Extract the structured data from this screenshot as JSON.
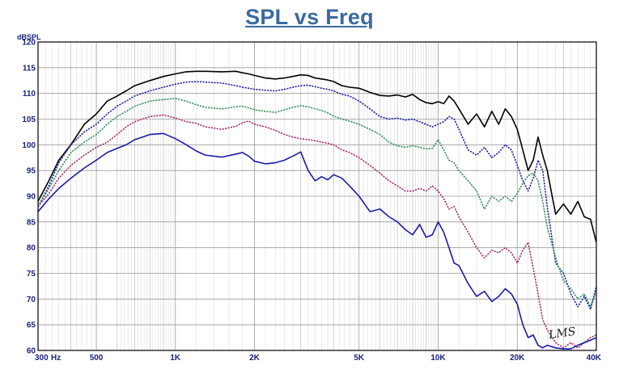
{
  "chart_data": {
    "type": "line",
    "title": "SPL vs Freq",
    "ylabel": "dBSPL",
    "xlabel": "",
    "x_unit_label": "Hz",
    "x_scale": "log",
    "xlim": [
      300,
      40000
    ],
    "ylim": [
      60,
      120
    ],
    "grid": true,
    "legend": "none",
    "x_ticks": [
      {
        "value": 300,
        "label": "300"
      },
      {
        "value": 500,
        "label": "500"
      },
      {
        "value": 1000,
        "label": "1K"
      },
      {
        "value": 2000,
        "label": "2K"
      },
      {
        "value": 5000,
        "label": "5K"
      },
      {
        "value": 10000,
        "label": "10K"
      },
      {
        "value": 20000,
        "label": "20K"
      },
      {
        "value": 40000,
        "label": "40K"
      }
    ],
    "y_ticks": [
      60,
      65,
      70,
      75,
      80,
      85,
      90,
      95,
      100,
      105,
      110,
      115,
      120
    ],
    "watermark": "LMS",
    "series": [
      {
        "color": "#000000",
        "style": "solid",
        "x": [
          300,
          330,
          360,
          400,
          450,
          500,
          550,
          600,
          650,
          700,
          800,
          900,
          1000,
          1100,
          1200,
          1300,
          1500,
          1700,
          1800,
          1900,
          2000,
          2200,
          2400,
          2600,
          2800,
          3000,
          3200,
          3400,
          3600,
          3800,
          4000,
          4300,
          4600,
          5000,
          5500,
          6000,
          6500,
          7000,
          7500,
          8000,
          8500,
          9000,
          9500,
          10000,
          10500,
          11000,
          11500,
          12000,
          13000,
          14000,
          15000,
          16000,
          17000,
          18000,
          19000,
          20000,
          21000,
          22000,
          23000,
          24000,
          25000,
          26000,
          28000,
          30000,
          32000,
          34000,
          36000,
          38000,
          40000
        ],
        "y": [
          89,
          93,
          97,
          100,
          104,
          106,
          108.5,
          109.5,
          110.5,
          111.5,
          112.5,
          113.3,
          113.8,
          114.2,
          114.3,
          114.3,
          114.2,
          114.3,
          114.0,
          113.8,
          113.5,
          113.0,
          112.8,
          113.0,
          113.3,
          113.6,
          113.5,
          113.0,
          112.8,
          112.6,
          112.3,
          111.5,
          111.2,
          111.0,
          110.2,
          109.6,
          109.5,
          109.7,
          109.3,
          109.8,
          108.8,
          108.2,
          108.0,
          108.4,
          108.0,
          109.5,
          108.5,
          107.0,
          104.0,
          106.0,
          103.5,
          106.5,
          104.0,
          107.0,
          105.5,
          103.0,
          99.0,
          95.0,
          97.0,
          101.5,
          98.0,
          95.0,
          86.5,
          88.5,
          86.5,
          89.0,
          86.0,
          85.5,
          81.0
        ]
      },
      {
        "color": "#1a1aa8",
        "style": "dashed",
        "x": [
          300,
          330,
          360,
          400,
          450,
          500,
          550,
          600,
          650,
          700,
          800,
          900,
          1000,
          1100,
          1200,
          1300,
          1500,
          1700,
          1800,
          1900,
          2000,
          2200,
          2400,
          2600,
          2800,
          3000,
          3200,
          3400,
          3600,
          3800,
          4000,
          4300,
          4600,
          5000,
          5500,
          6000,
          6500,
          7000,
          7500,
          8000,
          8500,
          9000,
          9500,
          10000,
          10500,
          11000,
          11500,
          12000,
          13000,
          14000,
          15000,
          16000,
          17000,
          18000,
          19000,
          20000,
          21000,
          22000,
          23000,
          24000,
          25000,
          26000,
          28000,
          30000,
          32000,
          34000,
          36000,
          38000,
          40000
        ],
        "y": [
          88,
          92,
          96.5,
          100,
          102.5,
          104,
          106,
          107.5,
          108.5,
          109.5,
          110.5,
          111.2,
          111.8,
          112.2,
          112.3,
          112.2,
          112.0,
          111.5,
          111.2,
          111.0,
          110.8,
          110.6,
          110.5,
          110.8,
          111.2,
          111.5,
          111.6,
          111.3,
          111.0,
          110.8,
          110.5,
          109.8,
          109.5,
          108.5,
          107.0,
          105.5,
          105.0,
          105.2,
          104.8,
          105.0,
          104.5,
          104.0,
          103.5,
          104.0,
          104.5,
          105.5,
          105.0,
          103.0,
          99.0,
          98.0,
          99.5,
          97.5,
          98.5,
          100.0,
          99.0,
          96.0,
          93.0,
          91.0,
          93.5,
          97.0,
          95.0,
          88.0,
          77.0,
          75.0,
          71.0,
          68.5,
          70.5,
          68.0,
          72.5
        ]
      },
      {
        "color": "#2e8b57",
        "style": "dashed",
        "x": [
          300,
          330,
          360,
          400,
          450,
          500,
          550,
          600,
          650,
          700,
          800,
          900,
          1000,
          1100,
          1200,
          1300,
          1500,
          1700,
          1800,
          1900,
          2000,
          2200,
          2400,
          2600,
          2800,
          3000,
          3200,
          3400,
          3600,
          3800,
          4000,
          4300,
          4600,
          5000,
          5500,
          6000,
          6500,
          7000,
          7500,
          8000,
          8500,
          9000,
          9500,
          10000,
          10500,
          11000,
          11500,
          12000,
          13000,
          14000,
          15000,
          16000,
          17000,
          18000,
          19000,
          20000,
          21000,
          22000,
          23000,
          24000,
          25000,
          26000,
          28000,
          30000,
          32000,
          34000,
          36000,
          38000,
          40000
        ],
        "y": [
          88,
          91.5,
          95,
          98.5,
          100.5,
          102,
          104,
          105.5,
          106.5,
          107.5,
          108.5,
          108.8,
          109.0,
          108.5,
          107.8,
          107.3,
          107.0,
          107.4,
          107.5,
          107.2,
          106.8,
          106.5,
          106.3,
          106.8,
          107.3,
          107.6,
          107.4,
          107.0,
          106.7,
          106.2,
          105.6,
          105.0,
          104.6,
          104.0,
          103.0,
          102.0,
          100.5,
          99.8,
          99.5,
          99.8,
          99.5,
          99.2,
          99.3,
          101.0,
          99.0,
          97.0,
          96.5,
          95.0,
          93.0,
          91.0,
          87.5,
          90.0,
          89.0,
          90.0,
          89.0,
          90.5,
          92.5,
          94.0,
          94.5,
          93.0,
          89.0,
          84.0,
          78.0,
          73.5,
          72.0,
          70.0,
          71.0,
          68.5,
          71.5
        ]
      },
      {
        "color": "#a0286c",
        "style": "dashed",
        "x": [
          300,
          330,
          360,
          400,
          450,
          500,
          550,
          600,
          650,
          700,
          800,
          900,
          1000,
          1100,
          1200,
          1300,
          1500,
          1700,
          1800,
          1900,
          2000,
          2200,
          2400,
          2600,
          2800,
          3000,
          3200,
          3400,
          3600,
          3800,
          4000,
          4300,
          4600,
          5000,
          5500,
          6000,
          6500,
          7000,
          7500,
          8000,
          8500,
          9000,
          9500,
          10000,
          10500,
          11000,
          11500,
          12000,
          13000,
          14000,
          15000,
          16000,
          17000,
          18000,
          19000,
          20000,
          21000,
          22000,
          23000,
          24000,
          25000,
          26000,
          28000,
          30000,
          32000,
          34000,
          36000,
          38000,
          40000
        ],
        "y": [
          88,
          90.5,
          93.5,
          96,
          98,
          99.5,
          100.5,
          102,
          103.5,
          104.5,
          105.5,
          105.8,
          105.2,
          104.5,
          104.2,
          103.5,
          103.0,
          103.6,
          104.3,
          104.6,
          104.0,
          103.5,
          102.8,
          102.0,
          101.5,
          101.2,
          101.0,
          100.8,
          100.5,
          100.3,
          100.0,
          99.0,
          98.5,
          97.5,
          96.0,
          94.5,
          93.0,
          92.0,
          91.0,
          91.0,
          91.5,
          91.0,
          92.0,
          91.0,
          89.5,
          87.5,
          88.0,
          86.0,
          83.0,
          80.0,
          78.0,
          79.5,
          79.0,
          80.0,
          79.0,
          77.0,
          79.5,
          81.0,
          76.0,
          71.0,
          66.0,
          64.0,
          61.5,
          60.5,
          61.5,
          60.5,
          61.5,
          62.5,
          63.0
        ]
      },
      {
        "color": "#1a1aa8",
        "style": "solid",
        "x": [
          300,
          330,
          360,
          400,
          450,
          500,
          550,
          600,
          650,
          700,
          800,
          900,
          1000,
          1100,
          1200,
          1300,
          1500,
          1700,
          1800,
          1900,
          2000,
          2200,
          2400,
          2600,
          2800,
          3000,
          3200,
          3400,
          3600,
          3800,
          4000,
          4300,
          4600,
          5000,
          5500,
          6000,
          6500,
          7000,
          7500,
          8000,
          8500,
          9000,
          9500,
          10000,
          10500,
          11000,
          11500,
          12000,
          13000,
          14000,
          15000,
          16000,
          17000,
          18000,
          19000,
          20000,
          21000,
          22000,
          23000,
          24000,
          25000,
          26000,
          28000,
          30000,
          32000,
          34000,
          36000,
          38000,
          40000
        ],
        "y": [
          87,
          89.5,
          91.5,
          93.5,
          95.5,
          97,
          98.5,
          99.3,
          100,
          101,
          102,
          102.2,
          101.2,
          100.0,
          98.8,
          98.0,
          97.6,
          98.2,
          98.5,
          97.8,
          96.8,
          96.3,
          96.5,
          97.0,
          97.8,
          98.6,
          95.0,
          93.0,
          93.8,
          93.2,
          94.2,
          93.5,
          92.0,
          90.0,
          87.0,
          87.5,
          86.0,
          85.0,
          83.5,
          82.5,
          84.5,
          82.0,
          82.5,
          85.0,
          83.0,
          80.0,
          77.0,
          76.5,
          73.0,
          70.5,
          71.5,
          69.5,
          70.5,
          72.0,
          71.0,
          69.0,
          65.0,
          62.5,
          63.0,
          61.0,
          60.5,
          61.0,
          60.5,
          60.3,
          60.3,
          61.0,
          61.5,
          62.0,
          62.5
        ]
      }
    ]
  }
}
